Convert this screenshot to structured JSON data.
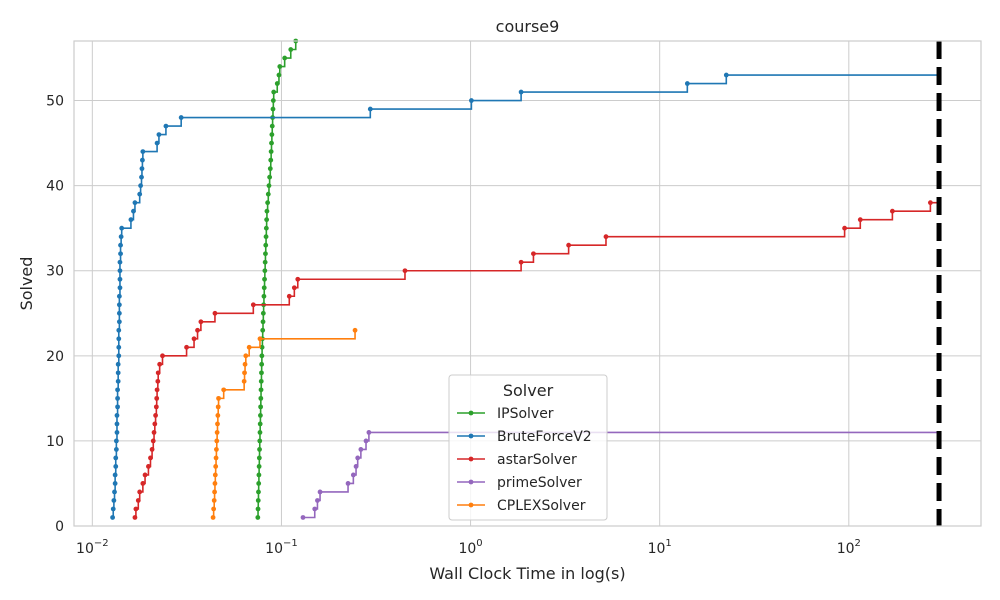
{
  "chart_data": {
    "type": "line",
    "step": true,
    "title": "course9",
    "xlabel": "Wall Clock Time in log(s)",
    "ylabel": "Solved",
    "xscale": "log",
    "xlim": [
      0.008,
      500
    ],
    "ylim": [
      0,
      57
    ],
    "grid": true,
    "legend": {
      "title": "Solver",
      "position": "lower center"
    },
    "xticks": [
      {
        "base": "10",
        "exp": "−2",
        "value": 0.01
      },
      {
        "base": "10",
        "exp": "−1",
        "value": 0.1
      },
      {
        "base": "10",
        "exp": "0",
        "value": 1
      },
      {
        "base": "10",
        "exp": "1",
        "value": 10
      },
      {
        "base": "10",
        "exp": "2",
        "value": 100
      }
    ],
    "yticks": [
      0,
      10,
      20,
      30,
      40,
      50
    ],
    "timeout": 300,
    "series": [
      {
        "name": "IPSolver",
        "color": "#2ca02c",
        "points": [
          [
            0.075,
            1
          ],
          [
            0.0752,
            2
          ],
          [
            0.0754,
            3
          ],
          [
            0.0756,
            4
          ],
          [
            0.0758,
            5
          ],
          [
            0.076,
            6
          ],
          [
            0.0762,
            7
          ],
          [
            0.0764,
            8
          ],
          [
            0.0766,
            9
          ],
          [
            0.0768,
            10
          ],
          [
            0.077,
            11
          ],
          [
            0.0772,
            12
          ],
          [
            0.0774,
            13
          ],
          [
            0.0776,
            14
          ],
          [
            0.0778,
            15
          ],
          [
            0.078,
            16
          ],
          [
            0.0782,
            17
          ],
          [
            0.0784,
            18
          ],
          [
            0.0786,
            19
          ],
          [
            0.0788,
            20
          ],
          [
            0.079,
            21
          ],
          [
            0.0793,
            22
          ],
          [
            0.0796,
            23
          ],
          [
            0.0799,
            24
          ],
          [
            0.0802,
            25
          ],
          [
            0.0805,
            26
          ],
          [
            0.0808,
            27
          ],
          [
            0.0811,
            28
          ],
          [
            0.0814,
            29
          ],
          [
            0.0817,
            30
          ],
          [
            0.082,
            31
          ],
          [
            0.0823,
            32
          ],
          [
            0.0826,
            33
          ],
          [
            0.0829,
            34
          ],
          [
            0.0832,
            35
          ],
          [
            0.0835,
            36
          ],
          [
            0.0838,
            37
          ],
          [
            0.0845,
            38
          ],
          [
            0.0852,
            39
          ],
          [
            0.0859,
            40
          ],
          [
            0.0866,
            41
          ],
          [
            0.0873,
            42
          ],
          [
            0.0878,
            43
          ],
          [
            0.0882,
            44
          ],
          [
            0.0886,
            45
          ],
          [
            0.089,
            46
          ],
          [
            0.0894,
            47
          ],
          [
            0.0898,
            48
          ],
          [
            0.0902,
            49
          ],
          [
            0.0906,
            50
          ],
          [
            0.091,
            51
          ],
          [
            0.095,
            52
          ],
          [
            0.097,
            53
          ],
          [
            0.098,
            54
          ],
          [
            0.104,
            55
          ],
          [
            0.112,
            56
          ],
          [
            0.119,
            57
          ]
        ]
      },
      {
        "name": "BruteForceV2",
        "color": "#1f77b4",
        "points": [
          [
            0.0128,
            1
          ],
          [
            0.0129,
            2
          ],
          [
            0.013,
            3
          ],
          [
            0.0131,
            4
          ],
          [
            0.0132,
            5
          ],
          [
            0.0132,
            6
          ],
          [
            0.0133,
            7
          ],
          [
            0.0133,
            8
          ],
          [
            0.0134,
            9
          ],
          [
            0.0134,
            10
          ],
          [
            0.0135,
            11
          ],
          [
            0.0135,
            12
          ],
          [
            0.0135,
            13
          ],
          [
            0.0136,
            14
          ],
          [
            0.0136,
            15
          ],
          [
            0.0136,
            16
          ],
          [
            0.0137,
            17
          ],
          [
            0.0137,
            18
          ],
          [
            0.0137,
            19
          ],
          [
            0.0138,
            20
          ],
          [
            0.0138,
            21
          ],
          [
            0.0138,
            22
          ],
          [
            0.0138,
            23
          ],
          [
            0.0139,
            24
          ],
          [
            0.0139,
            25
          ],
          [
            0.0139,
            26
          ],
          [
            0.0139,
            27
          ],
          [
            0.014,
            28
          ],
          [
            0.014,
            29
          ],
          [
            0.014,
            30
          ],
          [
            0.014,
            31
          ],
          [
            0.0141,
            32
          ],
          [
            0.0141,
            33
          ],
          [
            0.0142,
            34
          ],
          [
            0.0143,
            35
          ],
          [
            0.016,
            36
          ],
          [
            0.0165,
            37
          ],
          [
            0.0168,
            38
          ],
          [
            0.0178,
            39
          ],
          [
            0.018,
            40
          ],
          [
            0.0182,
            41
          ],
          [
            0.0183,
            42
          ],
          [
            0.0184,
            43
          ],
          [
            0.0185,
            44
          ],
          [
            0.022,
            45
          ],
          [
            0.0225,
            46
          ],
          [
            0.0245,
            47
          ],
          [
            0.0295,
            48
          ],
          [
            0.295,
            49
          ],
          [
            1.01,
            50
          ],
          [
            1.85,
            51
          ],
          [
            14.0,
            52
          ],
          [
            22.5,
            53
          ],
          [
            300,
            53
          ]
        ]
      },
      {
        "name": "astarSolver",
        "color": "#d62728",
        "points": [
          [
            0.0168,
            1
          ],
          [
            0.017,
            2
          ],
          [
            0.0175,
            3
          ],
          [
            0.0178,
            4
          ],
          [
            0.0185,
            5
          ],
          [
            0.019,
            6
          ],
          [
            0.0198,
            7
          ],
          [
            0.0203,
            8
          ],
          [
            0.0207,
            9
          ],
          [
            0.021,
            10
          ],
          [
            0.0212,
            11
          ],
          [
            0.0214,
            12
          ],
          [
            0.0216,
            13
          ],
          [
            0.0218,
            14
          ],
          [
            0.0219,
            15
          ],
          [
            0.022,
            16
          ],
          [
            0.0222,
            17
          ],
          [
            0.0223,
            18
          ],
          [
            0.0227,
            19
          ],
          [
            0.0235,
            20
          ],
          [
            0.0315,
            21
          ],
          [
            0.0345,
            22
          ],
          [
            0.036,
            23
          ],
          [
            0.0375,
            24
          ],
          [
            0.0445,
            25
          ],
          [
            0.071,
            26
          ],
          [
            0.11,
            27
          ],
          [
            0.117,
            28
          ],
          [
            0.122,
            29
          ],
          [
            0.45,
            30
          ],
          [
            1.85,
            31
          ],
          [
            2.15,
            32
          ],
          [
            3.3,
            33
          ],
          [
            5.2,
            34
          ],
          [
            95,
            35
          ],
          [
            115,
            36
          ],
          [
            170,
            37
          ],
          [
            270,
            38
          ],
          [
            300,
            38
          ]
        ]
      },
      {
        "name": "primeSolver",
        "color": "#9467bd",
        "points": [
          [
            0.13,
            1
          ],
          [
            0.15,
            2
          ],
          [
            0.155,
            3
          ],
          [
            0.16,
            4
          ],
          [
            0.225,
            5
          ],
          [
            0.24,
            6
          ],
          [
            0.248,
            7
          ],
          [
            0.253,
            8
          ],
          [
            0.263,
            9
          ],
          [
            0.28,
            10
          ],
          [
            0.29,
            11
          ],
          [
            300,
            11
          ]
        ]
      },
      {
        "name": "CPLEXSolver",
        "color": "#ff7f0e",
        "points": [
          [
            0.0435,
            1
          ],
          [
            0.0438,
            2
          ],
          [
            0.0441,
            3
          ],
          [
            0.0443,
            4
          ],
          [
            0.0445,
            5
          ],
          [
            0.0447,
            6
          ],
          [
            0.0449,
            7
          ],
          [
            0.0451,
            8
          ],
          [
            0.0453,
            9
          ],
          [
            0.0455,
            10
          ],
          [
            0.0457,
            11
          ],
          [
            0.0459,
            12
          ],
          [
            0.0461,
            13
          ],
          [
            0.0463,
            14
          ],
          [
            0.0465,
            15
          ],
          [
            0.0495,
            16
          ],
          [
            0.0635,
            17
          ],
          [
            0.0638,
            18
          ],
          [
            0.0642,
            19
          ],
          [
            0.0648,
            20
          ],
          [
            0.0675,
            21
          ],
          [
            0.077,
            22
          ],
          [
            0.245,
            23
          ]
        ]
      }
    ]
  }
}
